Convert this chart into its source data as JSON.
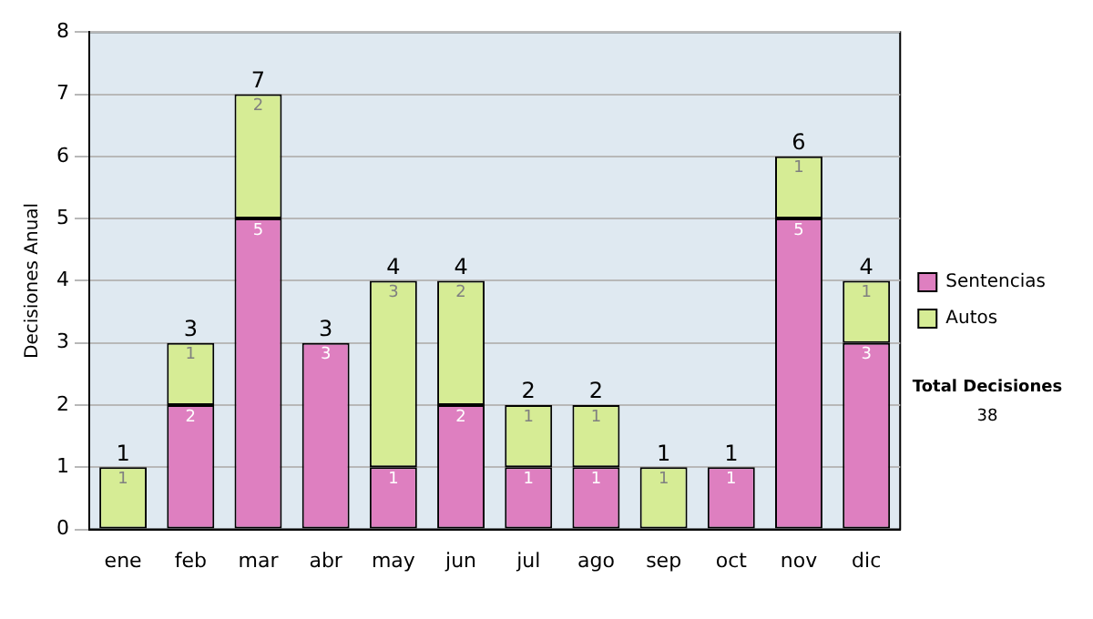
{
  "chart_data": {
    "type": "bar",
    "stacked": true,
    "ylabel": "Decisiones Anual",
    "categories": [
      "ene",
      "feb",
      "mar",
      "abr",
      "may",
      "jun",
      "jul",
      "ago",
      "sep",
      "oct",
      "nov",
      "dic"
    ],
    "series": [
      {
        "name": "Sentencias",
        "color": "#de7fc0",
        "values": [
          0,
          2,
          5,
          3,
          1,
          2,
          1,
          1,
          0,
          1,
          5,
          3
        ],
        "value_labels": [
          null,
          "2",
          "5",
          "3",
          "1",
          "2",
          "1",
          "1",
          null,
          "1",
          "5",
          "3"
        ]
      },
      {
        "name": "Autos",
        "color": "#d6ec95",
        "values": [
          1,
          1,
          2,
          0,
          3,
          2,
          1,
          1,
          1,
          0,
          1,
          1
        ],
        "value_labels": [
          "1",
          "1",
          "2",
          null,
          "3",
          "2",
          "1",
          "1",
          "1",
          null,
          "1",
          "1"
        ]
      }
    ],
    "totals": [
      "1",
      "3",
      "7",
      "3",
      "4",
      "4",
      "2",
      "2",
      "1",
      "1",
      "6",
      "4"
    ],
    "ylim": [
      0,
      8
    ],
    "yticks": [
      0,
      1,
      2,
      3,
      4,
      5,
      6,
      7,
      8
    ],
    "grid": "y",
    "legend": "right",
    "annotations": [
      "Total Decisiones",
      "38"
    ]
  }
}
